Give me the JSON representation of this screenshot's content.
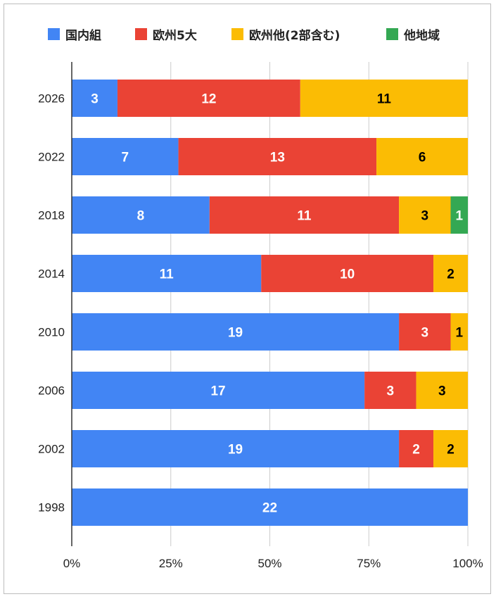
{
  "chart_data": {
    "type": "bar",
    "orientation": "horizontal",
    "stacked": "percent",
    "title": "",
    "xlabel": "",
    "ylabel": "",
    "categories": [
      "2026",
      "2022",
      "2018",
      "2014",
      "2010",
      "2006",
      "2002",
      "1998"
    ],
    "series": [
      {
        "name": "国内組",
        "color": "#4285F4",
        "label_color": "#ffffff",
        "values": [
          3,
          7,
          8,
          11,
          19,
          17,
          19,
          22
        ]
      },
      {
        "name": "欧州5大",
        "color": "#EA4335",
        "label_color": "#ffffff",
        "values": [
          12,
          13,
          11,
          10,
          3,
          3,
          2,
          0
        ]
      },
      {
        "name": "欧州他(2部含む)",
        "color": "#FBBC04",
        "label_color": "#000000",
        "values": [
          11,
          6,
          3,
          2,
          1,
          3,
          2,
          0
        ]
      },
      {
        "name": "他地域",
        "color": "#34A853",
        "label_color": "#ffffff",
        "values": [
          0,
          0,
          1,
          0,
          0,
          0,
          0,
          0
        ]
      }
    ],
    "x_ticks": [
      "0%",
      "25%",
      "50%",
      "75%",
      "100%"
    ],
    "xlim": [
      0,
      100
    ],
    "grid": true,
    "legend_position": "top"
  }
}
